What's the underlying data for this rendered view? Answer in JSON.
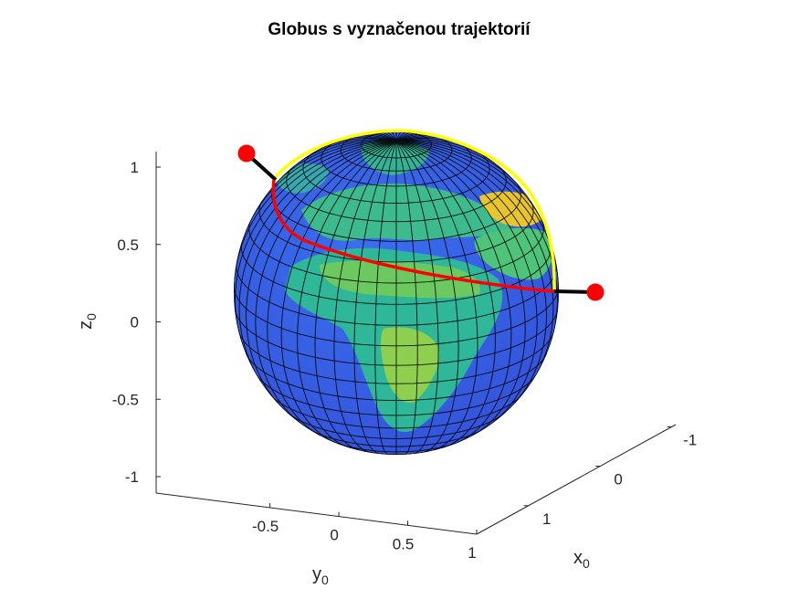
{
  "chart_data": {
    "type": "surface",
    "title": "Globus s vyznačenou trajektorií",
    "xlabel": {
      "base": "x",
      "sub": "0"
    },
    "ylabel": {
      "base": "y",
      "sub": "0"
    },
    "zlabel": {
      "base": "z",
      "sub": "0"
    },
    "x_ticks": [
      "-1",
      "0",
      "1"
    ],
    "y_ticks": [
      "-0.5",
      "0",
      "0.5",
      "1"
    ],
    "z_ticks": [
      "1",
      "0.5",
      "0",
      "-0.5",
      "-1"
    ],
    "xlim": [
      -1,
      1
    ],
    "ylim": [
      -1,
      1
    ],
    "zlim": [
      -1,
      1
    ],
    "surface": {
      "shape": "unit sphere",
      "texture": "Earth topography",
      "colormap": "parula",
      "mesh": "black grid"
    },
    "trajectory": {
      "color": "#ff0000",
      "start_marker_color": "#ff0000",
      "end_marker_color": "#ff0000",
      "connector_color": "#000000",
      "highlight_arc_color": "#ffff00"
    }
  }
}
